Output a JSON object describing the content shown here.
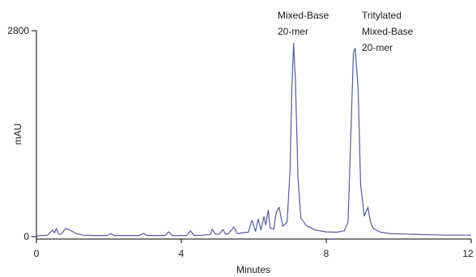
{
  "chart_data": {
    "type": "line",
    "xlabel": "Minutes",
    "ylabel": "mAU",
    "xlim": [
      0,
      12
    ],
    "ylim": [
      0,
      2800
    ],
    "xticks": [
      "0",
      "4",
      "8",
      "12"
    ],
    "yticks": [
      "0",
      "2800"
    ],
    "grid": false,
    "line_color": "#5a5a9a",
    "annotations": [
      {
        "lines": [
          "Mixed-Base",
          "20-mer"
        ],
        "x": 7.1
      },
      {
        "lines": [
          "Tritylated",
          "Mixed-Base",
          "20-mer"
        ],
        "x": 8.75
      }
    ],
    "series": [
      {
        "x": [
          0.0,
          0.3,
          0.45,
          0.5,
          0.55,
          0.62,
          0.7,
          0.8,
          0.9,
          1.0,
          1.1,
          1.3,
          1.6,
          1.95,
          2.05,
          2.15,
          2.5,
          2.85,
          2.95,
          3.05,
          3.4,
          3.55,
          3.65,
          3.75,
          4.0,
          4.15,
          4.25,
          4.35,
          4.6,
          4.8,
          4.85,
          4.95,
          5.05,
          5.15,
          5.22,
          5.3,
          5.45,
          5.55,
          5.65,
          5.85,
          5.95,
          6.05,
          6.12,
          6.2,
          6.28,
          6.33,
          6.4,
          6.45,
          6.55,
          6.62,
          6.7,
          6.8,
          6.92,
          7.0,
          7.05,
          7.1,
          7.15,
          7.22,
          7.3,
          7.45,
          7.7,
          8.0,
          8.3,
          8.5,
          8.6,
          8.7,
          8.75,
          8.8,
          8.88,
          8.95,
          9.05,
          9.15,
          9.22,
          9.3,
          9.5,
          9.8,
          10.2,
          10.8,
          11.4,
          12.0
        ],
        "y": [
          10,
          20,
          90,
          50,
          110,
          30,
          40,
          110,
          95,
          70,
          40,
          20,
          15,
          15,
          40,
          15,
          15,
          15,
          45,
          15,
          15,
          15,
          65,
          15,
          15,
          15,
          80,
          15,
          20,
          30,
          100,
          30,
          35,
          95,
          30,
          40,
          130,
          40,
          50,
          60,
          220,
          70,
          240,
          90,
          270,
          160,
          360,
          120,
          100,
          330,
          400,
          140,
          200,
          900,
          2000,
          2630,
          2100,
          800,
          250,
          150,
          90,
          65,
          60,
          80,
          200,
          1700,
          2500,
          2560,
          2000,
          700,
          280,
          400,
          200,
          110,
          60,
          40,
          35,
          25,
          20,
          20
        ]
      }
    ]
  }
}
